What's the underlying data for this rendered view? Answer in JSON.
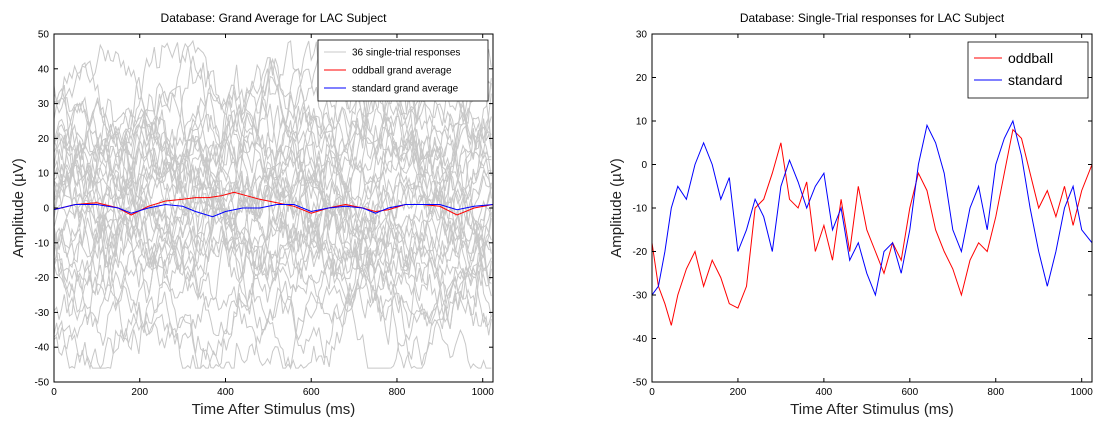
{
  "chart_data": [
    {
      "type": "line",
      "title": "Database: Grand Average for LAC Subject",
      "xlabel": "Time After Stimulus (ms)",
      "ylabel": "Amplitude (µV)",
      "xlim": [
        0,
        1024
      ],
      "ylim": [
        -50,
        50
      ],
      "xticks": [
        "0",
        "200",
        "400",
        "600",
        "800",
        "1000"
      ],
      "yticks": [
        "50",
        "40",
        "30",
        "20",
        "10",
        "0",
        "-10",
        "-20",
        "-30",
        "-40",
        "-50"
      ],
      "grid": false,
      "legend_position": "top-right",
      "single_trial_count": 36,
      "series": [
        {
          "name": "36 single-trial responses",
          "color": "#c8c8c8",
          "note_values": "noisy gray traces spanning roughly -45 to 48 µV"
        },
        {
          "name": "oddball grand average",
          "color": "#ff0000",
          "x": [
            0,
            50,
            100,
            150,
            180,
            220,
            260,
            300,
            330,
            360,
            390,
            420,
            450,
            480,
            520,
            560,
            600,
            640,
            680,
            720,
            750,
            780,
            820,
            860,
            900,
            940,
            980,
            1024
          ],
          "y": [
            -0.5,
            1,
            1.5,
            0,
            -2,
            0.5,
            2,
            2.5,
            3,
            3,
            3.5,
            4.5,
            3.5,
            2.5,
            1.5,
            0.5,
            -1.5,
            0,
            1,
            0,
            -1,
            -0.5,
            1,
            1,
            0.5,
            -2,
            0,
            1
          ]
        },
        {
          "name": "standard grand average",
          "color": "#0000ff",
          "x": [
            0,
            50,
            100,
            150,
            180,
            220,
            260,
            300,
            330,
            370,
            400,
            440,
            480,
            520,
            560,
            600,
            640,
            680,
            720,
            750,
            780,
            820,
            860,
            900,
            940,
            980,
            1024
          ],
          "y": [
            -0.5,
            1,
            1,
            0,
            -1.5,
            0,
            1,
            0.5,
            -1,
            -2.5,
            -1,
            0,
            0,
            1,
            1,
            -1,
            0,
            0.5,
            0,
            -1.5,
            0,
            1,
            1,
            1,
            -0.5,
            0.5,
            1
          ]
        }
      ]
    },
    {
      "type": "line",
      "title": "Database: Single-Trial responses for LAC Subject",
      "xlabel": "Time After Stimulus (ms)",
      "ylabel": "Amplitude (µV)",
      "xlim": [
        0,
        1024
      ],
      "ylim": [
        -50,
        30
      ],
      "xticks": [
        "0",
        "200",
        "400",
        "600",
        "800",
        "1000"
      ],
      "yticks": [
        "30",
        "20",
        "10",
        "0",
        "-10",
        "-20",
        "-30",
        "-40",
        "-50"
      ],
      "grid": false,
      "legend_position": "top-right",
      "series": [
        {
          "name": "oddball",
          "color": "#ff0000",
          "x": [
            0,
            15,
            30,
            45,
            60,
            80,
            100,
            120,
            140,
            160,
            180,
            200,
            220,
            240,
            260,
            280,
            300,
            320,
            340,
            360,
            380,
            400,
            420,
            440,
            460,
            480,
            500,
            520,
            540,
            560,
            580,
            600,
            620,
            640,
            660,
            680,
            700,
            720,
            740,
            760,
            780,
            800,
            820,
            840,
            860,
            880,
            900,
            920,
            940,
            960,
            980,
            1000,
            1024
          ],
          "y": [
            -18,
            -28,
            -32,
            -37,
            -30,
            -24,
            -20,
            -28,
            -22,
            -26,
            -32,
            -33,
            -28,
            -10,
            -8,
            -2,
            5,
            -8,
            -10,
            -4,
            -20,
            -14,
            -22,
            -8,
            -20,
            -5,
            -15,
            -20,
            -25,
            -18,
            -22,
            -10,
            -2,
            -6,
            -15,
            -20,
            -24,
            -30,
            -22,
            -18,
            -20,
            -12,
            -2,
            8,
            6,
            -2,
            -10,
            -6,
            -12,
            -5,
            -14,
            -6,
            0
          ]
        },
        {
          "name": "standard",
          "color": "#0000ff",
          "x": [
            0,
            15,
            30,
            45,
            60,
            80,
            100,
            120,
            140,
            160,
            180,
            200,
            220,
            240,
            260,
            280,
            300,
            320,
            340,
            360,
            380,
            400,
            420,
            440,
            460,
            480,
            500,
            520,
            540,
            560,
            580,
            600,
            620,
            640,
            660,
            680,
            700,
            720,
            740,
            760,
            780,
            800,
            820,
            840,
            860,
            880,
            900,
            920,
            940,
            960,
            980,
            1000,
            1024
          ],
          "y": [
            -30,
            -28,
            -20,
            -10,
            -5,
            -8,
            0,
            5,
            0,
            -8,
            -3,
            -20,
            -15,
            -8,
            -12,
            -20,
            -5,
            1,
            -4,
            -10,
            -5,
            -2,
            -15,
            -10,
            -22,
            -18,
            -25,
            -30,
            -20,
            -18,
            -25,
            -15,
            0,
            9,
            5,
            -2,
            -15,
            -20,
            -10,
            -5,
            -15,
            0,
            6,
            10,
            2,
            -10,
            -20,
            -28,
            -20,
            -10,
            -5,
            -15,
            -18
          ]
        }
      ]
    }
  ]
}
